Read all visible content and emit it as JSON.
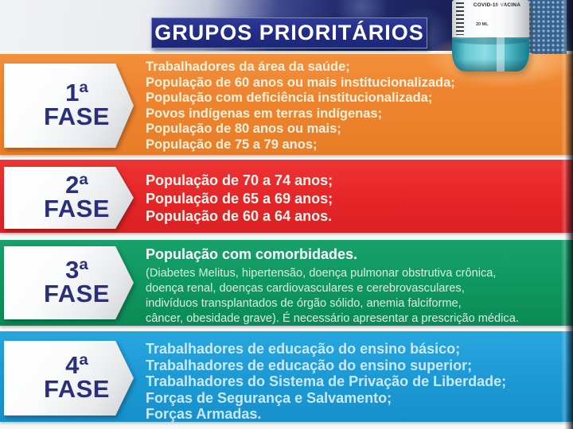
{
  "title": "GRUPOS PRIORITÁRIOS",
  "vial": {
    "name": "COVID-19 VACINA",
    "volume": "20 ML"
  },
  "phases": [
    {
      "num": "1ª",
      "fase": "FASE",
      "color": "#ef8530",
      "items": [
        "Trabalhadores da área da saúde;",
        "População de 60 anos ou mais institucionalizada;",
        "População com deficiência institucionalizada;",
        "Povos indígenas em terras indígenas;",
        "População de 80 anos ou mais;",
        "População de 75 a 79 anos;"
      ]
    },
    {
      "num": "2ª",
      "fase": "FASE",
      "color": "#e52527",
      "items": [
        "População de 70 a 74 anos;",
        "População de 65 a 69 anos;",
        "População de 60 a 64 anos."
      ]
    },
    {
      "num": "3ª",
      "fase": "FASE",
      "color": "#0f965f",
      "heading": "População com comorbidades.",
      "body_lines": [
        "(Diabetes Melitus, hipertensão, doença pulmonar obstrutiva crônica,",
        "doença renal, doenças cardiovasculares e cerebrovasculares,",
        "indivíduos  transplantados de órgão sólido, anemia falciforme,",
        "câncer, obesidade grave). É necessário apresentar a prescrição médica."
      ]
    },
    {
      "num": "4ª",
      "fase": "FASE",
      "color": "#1c99d4",
      "items": [
        "Trabalhadores de educação do ensino básico;",
        "Trabalhadores de educação do ensino superior;",
        "Trabalhadores do Sistema de Privação de Liberdade;",
        "Forças de Segurança e Salvamento;",
        "Forças Armadas."
      ]
    }
  ],
  "colors": {
    "title_bg": "#222c84",
    "header_navy": "#1a2158",
    "fase_text": "#293079",
    "footer_strip": "#0a7890",
    "phase1_text": "#fbf1dc",
    "phase2_text": "#fdf6ef",
    "phase3_text": "#d9efe2",
    "phase4_text": "#c9e9fa"
  }
}
